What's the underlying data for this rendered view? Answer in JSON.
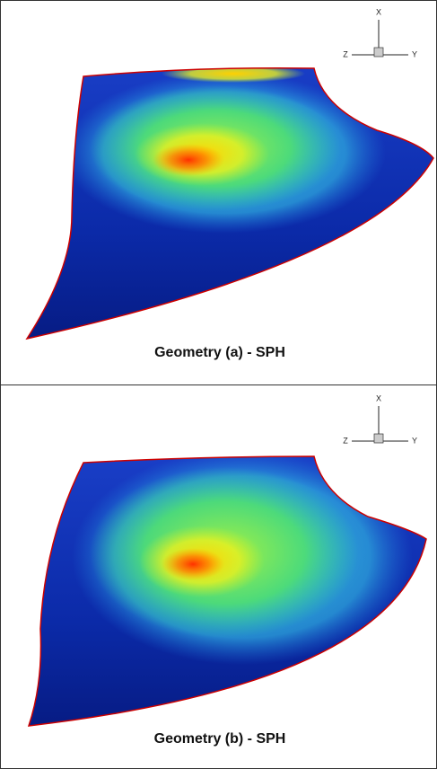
{
  "panels": [
    {
      "caption": "Geometry (a) - SPH",
      "triad": {
        "x": "X",
        "y": "Y",
        "z": "Z"
      }
    },
    {
      "caption": "Geometry (b) - SPH",
      "triad": {
        "x": "X",
        "y": "Y",
        "z": "Z"
      }
    }
  ]
}
